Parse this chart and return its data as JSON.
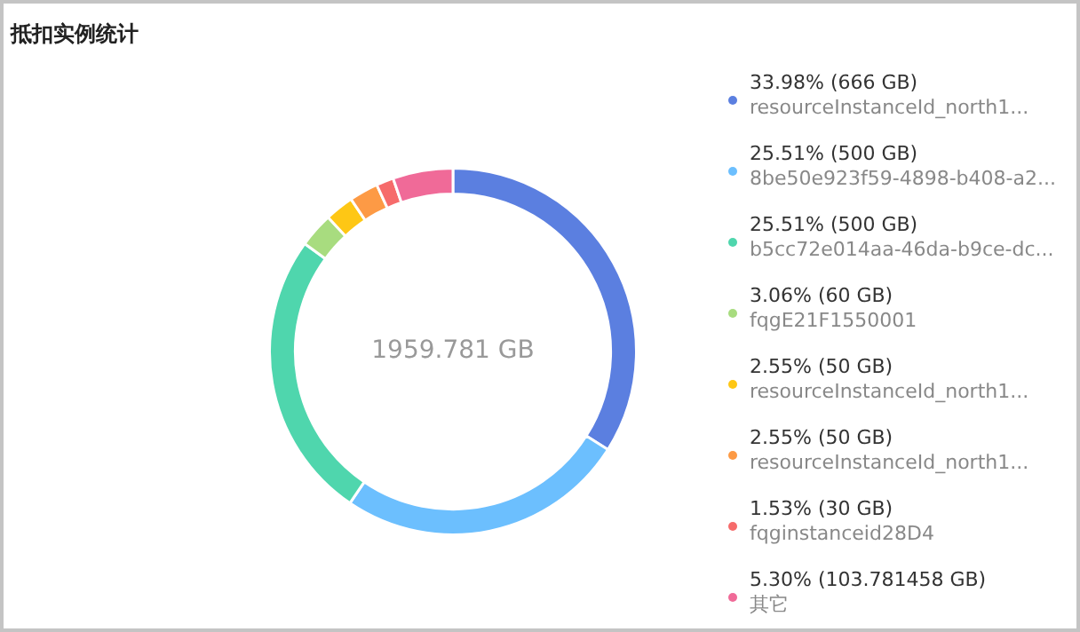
{
  "chart_data": {
    "type": "donut",
    "title": "抵扣实例统计",
    "categories": [
      "resourceInstanceId_north1...",
      "8be50e923f59-4898-b408-a2...",
      "b5cc72e014aa-46da-b9ce-dc...",
      "fqgE21F1550001",
      "resourceInstanceId_north1...",
      "resourceInstanceId_north1...",
      "fqginstanceid28D4",
      "其它"
    ],
    "values": [
      666,
      500,
      500,
      60,
      50,
      50,
      30,
      103.781458
    ],
    "colors": [
      "#5b7fe0",
      "#6cbffe",
      "#4fd6ad",
      "#a8dc7f",
      "#fec715",
      "#fd9a45",
      "#f66b6b",
      "#f06a98"
    ],
    "value_labels": [
      "33.98% (666 GB)",
      "25.51% (500 GB)",
      "25.51% (500 GB)",
      "3.06% (60 GB)",
      "2.55% (50 GB)",
      "2.55% (50 GB)",
      "1.53% (30 GB)",
      "5.30% (103.781458 GB)"
    ],
    "annotations": [
      "1959.781 GB"
    ],
    "legend": "right"
  }
}
